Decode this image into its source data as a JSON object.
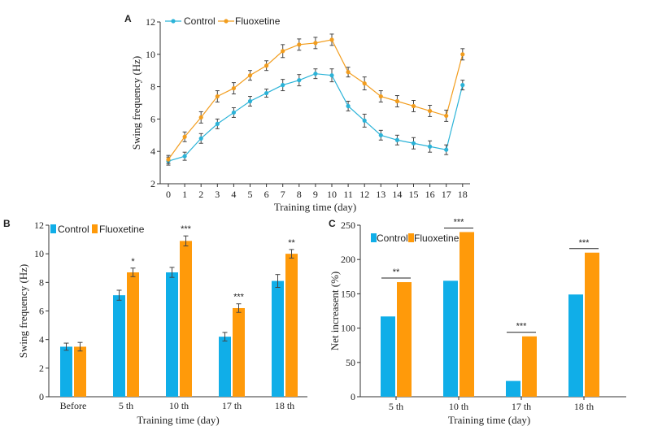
{
  "colors": {
    "control": "#2bb3d8",
    "fluoxetine": "#f29d1e",
    "control_bar": "#10aee8",
    "fluoxetine_bar": "#ff9a0a"
  },
  "chart_data": [
    {
      "id": "A",
      "type": "line",
      "panel_label": "A",
      "xlabel": "Training time (day)",
      "ylabel": "Swing frequency (Hz)",
      "x": [
        0,
        1,
        2,
        3,
        4,
        5,
        6,
        7,
        8,
        9,
        10,
        11,
        12,
        13,
        14,
        15,
        16,
        17,
        18
      ],
      "ylim": [
        2,
        12
      ],
      "yticks": [
        2,
        4,
        6,
        8,
        10,
        12
      ],
      "legend_position": "top-left",
      "series": [
        {
          "name": "Control",
          "color": "#2bb3d8",
          "values": [
            3.4,
            3.7,
            4.8,
            5.7,
            6.4,
            7.1,
            7.6,
            8.1,
            8.4,
            8.8,
            8.7,
            6.8,
            5.9,
            5.0,
            4.7,
            4.5,
            4.3,
            4.1,
            8.1
          ],
          "errors": [
            0.25,
            0.25,
            0.3,
            0.3,
            0.3,
            0.3,
            0.25,
            0.35,
            0.35,
            0.3,
            0.4,
            0.3,
            0.4,
            0.3,
            0.3,
            0.35,
            0.35,
            0.3,
            0.3
          ]
        },
        {
          "name": "Fluoxetine",
          "color": "#f29d1e",
          "values": [
            3.5,
            4.9,
            6.1,
            7.4,
            7.9,
            8.7,
            9.3,
            10.2,
            10.6,
            10.7,
            10.9,
            8.9,
            8.2,
            7.4,
            7.1,
            6.8,
            6.5,
            6.2,
            10.0
          ],
          "errors": [
            0.25,
            0.3,
            0.35,
            0.35,
            0.35,
            0.3,
            0.3,
            0.4,
            0.35,
            0.35,
            0.35,
            0.3,
            0.4,
            0.35,
            0.35,
            0.35,
            0.35,
            0.35,
            0.35
          ]
        }
      ]
    },
    {
      "id": "B",
      "type": "bar",
      "panel_label": "B",
      "xlabel": "Training time (day)",
      "ylabel": "Swing frequency (Hz)",
      "categories": [
        "Before",
        "5 th",
        "10 th",
        "17 th",
        "18 th"
      ],
      "ylim": [
        0,
        12
      ],
      "yticks": [
        0,
        2,
        4,
        6,
        8,
        10,
        12
      ],
      "legend_position": "top-left",
      "series": [
        {
          "name": "Control",
          "color": "#10aee8",
          "values": [
            3.5,
            7.1,
            8.7,
            4.2,
            8.1
          ],
          "errors": [
            0.25,
            0.35,
            0.35,
            0.3,
            0.45
          ]
        },
        {
          "name": "Fluoxetine",
          "color": "#ff9a0a",
          "values": [
            3.5,
            8.7,
            10.9,
            6.2,
            10.0
          ],
          "errors": [
            0.3,
            0.3,
            0.35,
            0.3,
            0.3
          ]
        }
      ],
      "significance": [
        "",
        "*",
        "***",
        "***",
        "**"
      ]
    },
    {
      "id": "C",
      "type": "bar",
      "panel_label": "C",
      "xlabel": "Training time (day)",
      "ylabel": "Net increasent (%)",
      "categories": [
        "5 th",
        "10 th",
        "17 th",
        "18 th"
      ],
      "ylim": [
        0,
        250
      ],
      "yticks": [
        0,
        50,
        100,
        150,
        200,
        250
      ],
      "legend_position": "top-left",
      "series": [
        {
          "name": "Control",
          "color": "#10aee8",
          "values": [
            117,
            169,
            23,
            149
          ]
        },
        {
          "name": "Fluoxetine",
          "color": "#ff9a0a",
          "values": [
            167,
            240,
            88,
            210
          ]
        }
      ],
      "significance": [
        "**",
        "***",
        "***",
        "***"
      ]
    }
  ]
}
